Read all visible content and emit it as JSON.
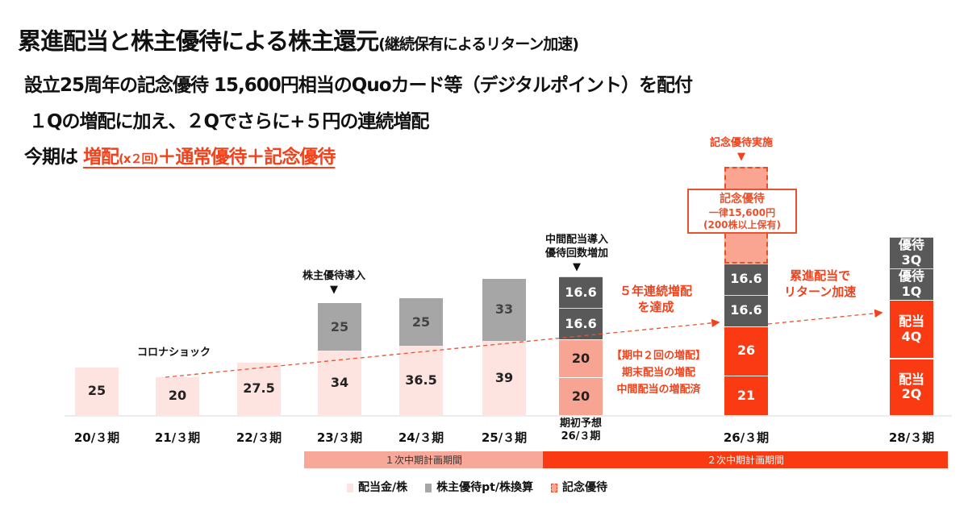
{
  "header": {
    "title": "累進配当と株主優待による株主還元",
    "title_sub": "(継続保有によるリターン加速)",
    "line1": "設立25周年の記念優待 15,600円相当のQuoカード等（デジタルポイント）を配付",
    "line2": "１Qの増配に加え、２Qでさらに+５円の連続増配",
    "line3_prefix": "今期は ",
    "line3_hl1": "増配",
    "line3_hl_small": "(x２回)",
    "line3_hl2": "＋通常優待＋記念優待"
  },
  "chart_data": {
    "type": "bar",
    "stacked": true,
    "categories": [
      "20/３期",
      "21/３期",
      "22/３期",
      "23/３期",
      "24/３期",
      "25/３期",
      "期初予想\n26/３期",
      "26/３期",
      "28/３期"
    ],
    "series": [
      {
        "name": "配当金/株",
        "values": [
          25,
          20,
          27.5,
          34,
          36.5,
          39,
          null,
          null,
          null
        ]
      },
      {
        "name": "株主優待pt/株換算",
        "values": [
          null,
          null,
          null,
          25,
          25,
          33,
          null,
          null,
          null
        ]
      }
    ],
    "forecast_2603": {
      "dividend_segments": [
        "20",
        "20"
      ],
      "benefit_segments": [
        "16.6",
        "16.6"
      ]
    },
    "result_2603": {
      "dividend_segments": [
        "21",
        "26"
      ],
      "benefit_segments": [
        "16.6",
        "16.6"
      ],
      "memorial": "記念優待"
    },
    "target_2803": {
      "segments": [
        {
          "label": "配当\n2Q",
          "kind": "dividend",
          "approx": 30
        },
        {
          "label": "配当\n4Q",
          "kind": "dividend",
          "approx": 31
        },
        {
          "label": "優待\n1Q",
          "kind": "benefit",
          "approx": 16.6
        },
        {
          "label": "優待\n3Q",
          "kind": "benefit",
          "approx": 16.6
        }
      ]
    },
    "annotations": {
      "corona": "コロナショック",
      "benefit_intro": "株主優待導入",
      "interim_intro": "中間配当導入\n優待回数増加",
      "memorial_impl": "記念優待実施",
      "memo_box_title": "記念優待",
      "memo_box_line1": "一律15,600円",
      "memo_box_line2": "(200株以上保有)",
      "five_year": "５年連続増配\nを達成",
      "two_increase": "【期中２回の増配】\n期末配当の増配\n中間配当の増配済",
      "progressive": "累進配当で\nリターン加速"
    },
    "periods": [
      {
        "label": "１次中期計画期間",
        "color": "#f8a898"
      },
      {
        "label": "２次中期計画期間",
        "color": "#fa3a12"
      }
    ],
    "legend": [
      "配当金/株",
      "株主優待pt/株換算",
      "記念優待"
    ],
    "legend_placement": "bottom",
    "colors": {
      "dividend": "#fde4e0",
      "benefit": "#a6a6a6",
      "benefit_dark": "#595959",
      "dividend_forecast": "#f8a492",
      "dividend_red": "#fa3a12",
      "accent": "#f0421c"
    }
  }
}
